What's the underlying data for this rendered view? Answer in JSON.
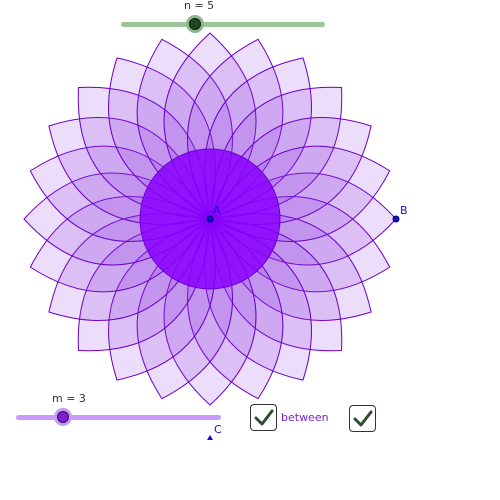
{
  "sliders": {
    "n": {
      "label": "n = 5",
      "value": 5,
      "track_color": "#9cc59a",
      "knob_color": "#1e4620",
      "knob_halo": "#8fb88d"
    },
    "m": {
      "label": "m = 3",
      "value": 3,
      "track_color": "#cc99ff",
      "knob_color": "#7b1fd1",
      "knob_halo": "#c89cf0"
    }
  },
  "points": {
    "A": {
      "label": "A",
      "color": "#1010d0"
    },
    "B": {
      "label": "B",
      "color": "#1010d0"
    },
    "C": {
      "label": "C",
      "color": "#1010d0"
    }
  },
  "checkboxes": {
    "between": {
      "label": "between",
      "checked": true,
      "label_color": "#7b1fd1"
    },
    "second": {
      "label": "",
      "checked": true
    }
  },
  "figure": {
    "fill_color": "#8b2be2",
    "stroke_color": "#6a00cc",
    "center_disk_color": "#8800ff"
  }
}
